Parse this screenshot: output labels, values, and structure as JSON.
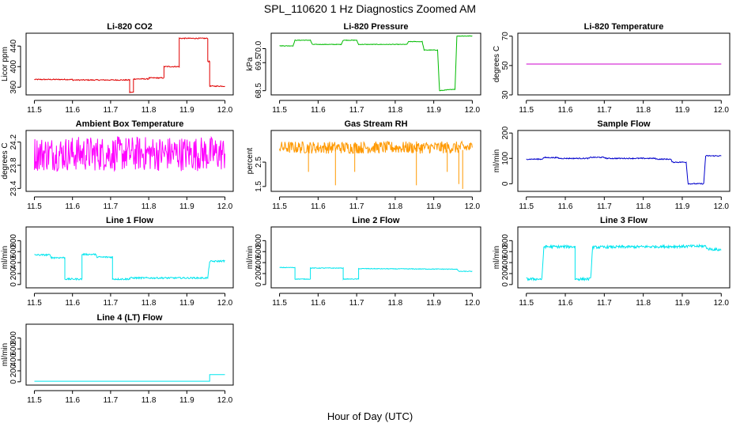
{
  "figure": {
    "title": "SPL_110620  1 Hz Diagnostics Zoomed AM",
    "xlabel": "Hour of Day (UTC)"
  },
  "chart_data": [
    {
      "type": "line",
      "title": "Li-820 CO2",
      "ylabel": "Licor ppm",
      "color": "#e00000",
      "xlim": [
        11.5,
        12.0
      ],
      "ylim": [
        345,
        465
      ],
      "xticks": [
        11.5,
        11.6,
        11.7,
        11.8,
        11.9,
        12.0
      ],
      "xtick_labels": [
        "11.5",
        "11.6",
        "11.7",
        "11.8",
        "11.9",
        "12.0"
      ],
      "yticks": [
        360,
        400,
        440
      ],
      "ytick_labels": [
        "360",
        "400",
        "440"
      ],
      "noise": 1.0,
      "series": [
        {
          "x": [
            11.5,
            11.6,
            11.6,
            11.75,
            11.75,
            11.76,
            11.76,
            11.8,
            11.8,
            11.84,
            11.84,
            11.88,
            11.88,
            11.955,
            11.955,
            11.96,
            11.96,
            12.0
          ],
          "y": [
            375,
            375,
            374,
            374,
            350,
            350,
            376,
            376,
            378,
            378,
            400,
            400,
            455,
            455,
            410,
            410,
            362,
            362
          ]
        }
      ]
    },
    {
      "type": "line",
      "title": "Li-820 Pressure",
      "ylabel": "kPa",
      "color": "#00bb00",
      "xlim": [
        11.5,
        12.0
      ],
      "ylim": [
        68.35,
        70.55
      ],
      "xticks": [
        11.5,
        11.6,
        11.7,
        11.8,
        11.9,
        12.0
      ],
      "xtick_labels": [
        "11.5",
        "11.6",
        "11.7",
        "11.8",
        "11.9",
        "12.0"
      ],
      "yticks": [
        68.5,
        69.5,
        70.0
      ],
      "ytick_labels": [
        "68.5",
        "69.5",
        "70.0"
      ],
      "noise": 0.01,
      "series": [
        {
          "x": [
            11.5,
            11.535,
            11.54,
            11.58,
            11.585,
            11.66,
            11.665,
            11.7,
            11.705,
            11.83,
            11.835,
            11.87,
            11.875,
            11.91,
            11.915,
            11.95,
            11.955,
            11.96,
            11.965,
            12.0
          ],
          "y": [
            70.1,
            70.1,
            70.3,
            70.3,
            70.15,
            70.15,
            70.3,
            70.3,
            70.15,
            70.15,
            70.25,
            70.25,
            69.95,
            69.95,
            68.5,
            68.55,
            68.55,
            70.45,
            70.45,
            70.45
          ]
        }
      ]
    },
    {
      "type": "line",
      "title": "Li-820 Temperature",
      "ylabel": "degrees C",
      "color": "#cc00cc",
      "xlim": [
        11.5,
        12.0
      ],
      "ylim": [
        30,
        72
      ],
      "xticks": [
        11.5,
        11.6,
        11.7,
        11.8,
        11.9,
        12.0
      ],
      "xtick_labels": [
        "11.5",
        "11.6",
        "11.7",
        "11.8",
        "11.9",
        "12.0"
      ],
      "yticks": [
        30,
        50,
        70
      ],
      "ytick_labels": [
        "30",
        "50",
        "70"
      ],
      "noise": 0,
      "series": [
        {
          "x": [
            11.5,
            12.0
          ],
          "y": [
            51,
            51
          ]
        }
      ]
    },
    {
      "type": "line",
      "title": "Ambient Box Temperature",
      "ylabel": "degrees C",
      "color": "#ff00ff",
      "xlim": [
        11.5,
        12.0
      ],
      "ylim": [
        23.35,
        24.4
      ],
      "xticks": [
        11.5,
        11.6,
        11.7,
        11.8,
        11.9,
        12.0
      ],
      "xtick_labels": [
        "11.5",
        "11.6",
        "11.7",
        "11.8",
        "11.9",
        "12.0"
      ],
      "yticks": [
        23.4,
        23.8,
        24.2
      ],
      "ytick_labels": [
        "23.4",
        "23.8",
        "24.2"
      ],
      "noise": 0.3,
      "series": [
        {
          "x": [
            11.5,
            12.0
          ],
          "y": [
            24.0,
            24.0
          ]
        }
      ]
    },
    {
      "type": "line",
      "title": "Gas Stream RH",
      "ylabel": "percent",
      "color": "#ff9900",
      "xlim": [
        11.5,
        12.0
      ],
      "ylim": [
        1.3,
        3.8
      ],
      "xticks": [
        11.5,
        11.6,
        11.7,
        11.8,
        11.9,
        12.0
      ],
      "xtick_labels": [
        "11.5",
        "11.6",
        "11.7",
        "11.8",
        "11.9",
        "12.0"
      ],
      "yticks": [
        1.5,
        2.5
      ],
      "ytick_labels": [
        "1.5",
        "2.5"
      ],
      "noise": 0.25,
      "series": [
        {
          "x": [
            11.5,
            12.0
          ],
          "y": [
            3.1,
            3.1
          ]
        }
      ]
    },
    {
      "type": "line",
      "title": "Sample Flow",
      "ylabel": "ml/min",
      "color": "#0000cc",
      "xlim": [
        11.5,
        12.0
      ],
      "ylim": [
        -30,
        210
      ],
      "xticks": [
        11.5,
        11.6,
        11.7,
        11.8,
        11.9,
        12.0
      ],
      "xtick_labels": [
        "11.5",
        "11.6",
        "11.7",
        "11.8",
        "11.9",
        "12.0"
      ],
      "yticks": [
        0,
        100,
        200
      ],
      "ytick_labels": [
        "0",
        "100",
        "200"
      ],
      "noise": 2,
      "series": [
        {
          "x": [
            11.5,
            11.54,
            11.545,
            11.58,
            11.585,
            11.66,
            11.665,
            11.7,
            11.705,
            11.83,
            11.835,
            11.87,
            11.875,
            11.91,
            11.915,
            11.95,
            11.955,
            11.96,
            11.965,
            12.0
          ],
          "y": [
            97,
            97,
            103,
            103,
            100,
            100,
            104,
            104,
            100,
            100,
            97,
            97,
            85,
            85,
            0,
            0,
            0,
            110,
            110,
            110
          ]
        }
      ]
    },
    {
      "type": "line",
      "title": "Line 1 Flow",
      "ylabel": "ml/min",
      "color": "#00e5ee",
      "xlim": [
        11.5,
        12.0
      ],
      "ylim": [
        -60,
        1050
      ],
      "xticks": [
        11.5,
        11.6,
        11.7,
        11.8,
        11.9,
        12.0
      ],
      "xtick_labels": [
        "11.5",
        "11.6",
        "11.7",
        "11.8",
        "11.9",
        "12.0"
      ],
      "yticks": [
        0,
        200,
        400,
        600,
        800
      ],
      "ytick_labels": [
        "0",
        "200",
        "400",
        "600",
        "800"
      ],
      "noise": 15,
      "series": [
        {
          "x": [
            11.5,
            11.54,
            11.545,
            11.58,
            11.58,
            11.625,
            11.625,
            11.66,
            11.665,
            11.705,
            11.705,
            11.75,
            11.75,
            11.955,
            11.96,
            12.0
          ],
          "y": [
            540,
            540,
            490,
            490,
            100,
            100,
            550,
            550,
            500,
            500,
            100,
            100,
            120,
            120,
            420,
            430
          ]
        }
      ]
    },
    {
      "type": "line",
      "title": "Line 2 Flow",
      "ylabel": "ml/min",
      "color": "#00e5ee",
      "xlim": [
        11.5,
        12.0
      ],
      "ylim": [
        -60,
        1050
      ],
      "xticks": [
        11.5,
        11.6,
        11.7,
        11.8,
        11.9,
        12.0
      ],
      "xtick_labels": [
        "11.5",
        "11.6",
        "11.7",
        "11.8",
        "11.9",
        "12.0"
      ],
      "yticks": [
        0,
        200,
        400,
        600,
        800
      ],
      "ytick_labels": [
        "0",
        "200",
        "400",
        "600",
        "800"
      ],
      "noise": 6,
      "series": [
        {
          "x": [
            11.5,
            11.54,
            11.54,
            11.58,
            11.58,
            11.665,
            11.665,
            11.705,
            11.705,
            11.96,
            11.965,
            12.0
          ],
          "y": [
            310,
            310,
            100,
            100,
            300,
            300,
            100,
            100,
            290,
            280,
            240,
            240
          ]
        }
      ]
    },
    {
      "type": "line",
      "title": "Line 3 Flow",
      "ylabel": "ml/min",
      "color": "#00e5ee",
      "xlim": [
        11.5,
        12.0
      ],
      "ylim": [
        -60,
        1050
      ],
      "xticks": [
        11.5,
        11.6,
        11.7,
        11.8,
        11.9,
        12.0
      ],
      "xtick_labels": [
        "11.5",
        "11.6",
        "11.7",
        "11.8",
        "11.9",
        "12.0"
      ],
      "yticks": [
        0,
        200,
        400,
        600,
        800
      ],
      "ytick_labels": [
        "0",
        "200",
        "400",
        "600",
        "800"
      ],
      "noise": 25,
      "series": [
        {
          "x": [
            11.5,
            11.54,
            11.545,
            11.625,
            11.625,
            11.665,
            11.67,
            11.96,
            11.965,
            12.0
          ],
          "y": [
            100,
            100,
            690,
            690,
            100,
            100,
            680,
            700,
            650,
            630
          ]
        }
      ]
    },
    {
      "type": "line",
      "title": "Line 4 (LT) Flow",
      "ylabel": "ml/min",
      "color": "#00e5ee",
      "xlim": [
        11.5,
        12.0
      ],
      "ylim": [
        -60,
        1050
      ],
      "xticks": [
        11.5,
        11.6,
        11.7,
        11.8,
        11.9,
        12.0
      ],
      "xtick_labels": [
        "11.5",
        "11.6",
        "11.7",
        "11.8",
        "11.9",
        "12.0"
      ],
      "yticks": [
        0,
        200,
        400,
        600,
        800
      ],
      "ytick_labels": [
        "0",
        "200",
        "400",
        "600",
        "800"
      ],
      "noise": 0,
      "series": [
        {
          "x": [
            11.5,
            11.96,
            11.96,
            12.0
          ],
          "y": [
            10,
            10,
            130,
            130
          ]
        }
      ]
    }
  ]
}
